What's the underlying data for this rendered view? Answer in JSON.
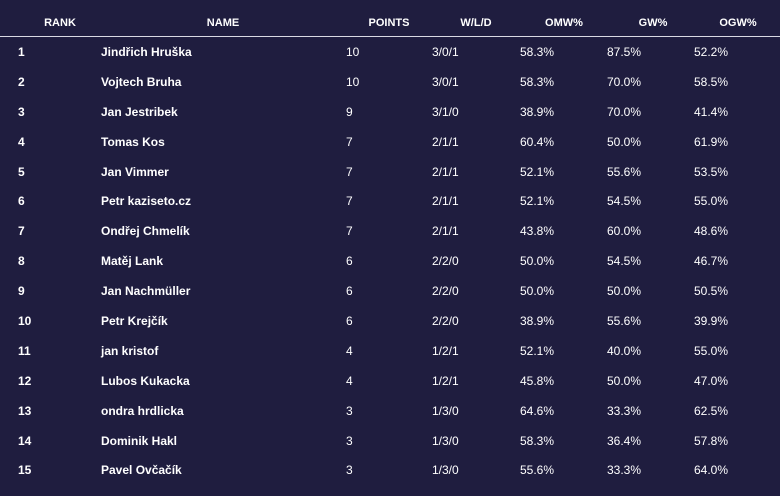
{
  "table": {
    "headers": {
      "rank": "RANK",
      "name": "NAME",
      "points": "POINTS",
      "wld": "W/L/D",
      "omw": "OMW%",
      "gw": "GW%",
      "ogw": "OGW%"
    },
    "rows": [
      {
        "rank": "1",
        "name": "Jindřich Hruška",
        "points": "10",
        "wld": "3/0/1",
        "omw": "58.3%",
        "gw": "87.5%",
        "ogw": "52.2%"
      },
      {
        "rank": "2",
        "name": "Vojtech Bruha",
        "points": "10",
        "wld": "3/0/1",
        "omw": "58.3%",
        "gw": "70.0%",
        "ogw": "58.5%"
      },
      {
        "rank": "3",
        "name": "Jan Jestribek",
        "points": "9",
        "wld": "3/1/0",
        "omw": "38.9%",
        "gw": "70.0%",
        "ogw": "41.4%"
      },
      {
        "rank": "4",
        "name": "Tomas Kos",
        "points": "7",
        "wld": "2/1/1",
        "omw": "60.4%",
        "gw": "50.0%",
        "ogw": "61.9%"
      },
      {
        "rank": "5",
        "name": "Jan Vimmer",
        "points": "7",
        "wld": "2/1/1",
        "omw": "52.1%",
        "gw": "55.6%",
        "ogw": "53.5%"
      },
      {
        "rank": "6",
        "name": "Petr kaziseto.cz",
        "points": "7",
        "wld": "2/1/1",
        "omw": "52.1%",
        "gw": "54.5%",
        "ogw": "55.0%"
      },
      {
        "rank": "7",
        "name": "Ondřej Chmelík",
        "points": "7",
        "wld": "2/1/1",
        "omw": "43.8%",
        "gw": "60.0%",
        "ogw": "48.6%"
      },
      {
        "rank": "8",
        "name": "Matěj Lank",
        "points": "6",
        "wld": "2/2/0",
        "omw": "50.0%",
        "gw": "54.5%",
        "ogw": "46.7%"
      },
      {
        "rank": "9",
        "name": "Jan Nachmüller",
        "points": "6",
        "wld": "2/2/0",
        "omw": "50.0%",
        "gw": "50.0%",
        "ogw": "50.5%"
      },
      {
        "rank": "10",
        "name": "Petr Krejčík",
        "points": "6",
        "wld": "2/2/0",
        "omw": "38.9%",
        "gw": "55.6%",
        "ogw": "39.9%"
      },
      {
        "rank": "11",
        "name": "jan kristof",
        "points": "4",
        "wld": "1/2/1",
        "omw": "52.1%",
        "gw": "40.0%",
        "ogw": "55.0%"
      },
      {
        "rank": "12",
        "name": "Lubos Kukacka",
        "points": "4",
        "wld": "1/2/1",
        "omw": "45.8%",
        "gw": "50.0%",
        "ogw": "47.0%"
      },
      {
        "rank": "13",
        "name": "ondra hrdlicka",
        "points": "3",
        "wld": "1/3/0",
        "omw": "64.6%",
        "gw": "33.3%",
        "ogw": "62.5%"
      },
      {
        "rank": "14",
        "name": "Dominik Hakl",
        "points": "3",
        "wld": "1/3/0",
        "omw": "58.3%",
        "gw": "36.4%",
        "ogw": "57.8%"
      },
      {
        "rank": "15",
        "name": "Pavel Ovčačík",
        "points": "3",
        "wld": "1/3/0",
        "omw": "55.6%",
        "gw": "33.3%",
        "ogw": "64.0%"
      }
    ]
  },
  "colors": {
    "background": "#1f1d3f",
    "text": "#ffffff",
    "header_divider": "#d9d9e3"
  }
}
